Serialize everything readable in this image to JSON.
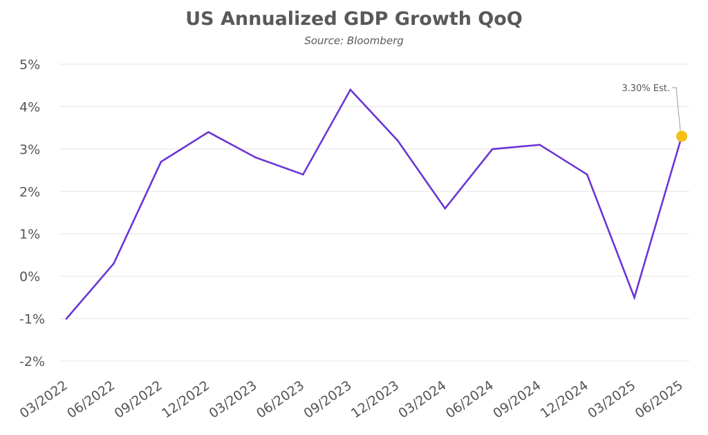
{
  "chart_data": {
    "type": "line",
    "title": "US Annualized GDP Growth QoQ",
    "subtitle": "Source: Bloomberg",
    "xlabel": "",
    "ylabel": "",
    "categories": [
      "03/2022",
      "06/2022",
      "09/2022",
      "12/2022",
      "03/2023",
      "06/2023",
      "09/2023",
      "12/2023",
      "03/2024",
      "06/2024",
      "09/2024",
      "12/2024",
      "03/2025",
      "06/2025"
    ],
    "series": [
      {
        "values": [
          -1.0,
          0.3,
          2.7,
          3.4,
          2.8,
          2.4,
          4.4,
          3.2,
          1.6,
          3.0,
          3.1,
          2.4,
          -0.5,
          3.3
        ]
      }
    ],
    "ylim": [
      -2,
      5
    ],
    "yticks": [
      5,
      4,
      3,
      2,
      1,
      0,
      -1,
      -2
    ],
    "ytick_labels": [
      "5%",
      "4%",
      "3%",
      "2%",
      "1%",
      "0%",
      "-1%",
      "-2%"
    ],
    "grid": true,
    "legend": "none",
    "annotation": {
      "label": "3.30% Est.",
      "category": "06/2025",
      "value": 3.3
    },
    "colors": {
      "line": "#6a35d6",
      "marker": "#f5bf16",
      "grid": "#e3e3e3",
      "text": "#595959"
    }
  }
}
